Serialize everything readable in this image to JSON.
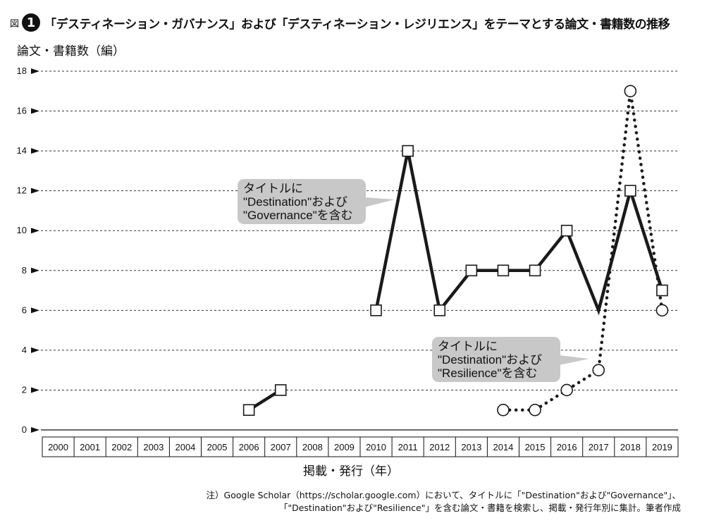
{
  "figure": {
    "label": "図",
    "number": "1",
    "title": "「デスティネーション・ガバナンス」および「デスティネーション・レジリエンス」をテーマとする論文・書籍数の推移"
  },
  "note": {
    "line1": "注）Google Scholar（https://scholar.google.com）において、タイトルに「\"Destination\"および\"Governance\"」、",
    "line2": "「\"Destination\"および\"Resilience\"」を含む論文・書籍を検索し、掲載・発行年別に集計。筆者作成"
  },
  "chart_data": {
    "type": "line",
    "title": "「デスティネーション・ガバナンス」および「デスティネーション・レジリエンス」をテーマとする論文・書籍数の推移",
    "xlabel": "掲載・発行（年）",
    "ylabel": "論文・書籍数（編）",
    "ylim": [
      0,
      18
    ],
    "yticks": [
      0,
      2,
      4,
      6,
      8,
      10,
      12,
      14,
      16,
      18
    ],
    "grid": true,
    "categories": [
      "2000",
      "2001",
      "2002",
      "2003",
      "2004",
      "2005",
      "2006",
      "2007",
      "2008",
      "2009",
      "2010",
      "2011",
      "2012",
      "2013",
      "2014",
      "2015",
      "2016",
      "2017",
      "2018",
      "2019"
    ],
    "series": [
      {
        "name": "タイトルに\"Destination\"および\"Governance\"を含む",
        "label_lines": [
          "タイトルに",
          "\"Destination\"および",
          "\"Governance\"を含む"
        ],
        "style": "solid",
        "marker": "square",
        "segments": [
          [
            [
              "2006",
              1
            ],
            [
              "2007",
              2
            ]
          ],
          [
            [
              "2010",
              6
            ],
            [
              "2011",
              14
            ],
            [
              "2012",
              6
            ],
            [
              "2013",
              8
            ],
            [
              "2014",
              8
            ],
            [
              "2015",
              8
            ],
            [
              "2016",
              10
            ],
            [
              "2017",
              6
            ],
            [
              "2018",
              12
            ],
            [
              "2019",
              7
            ]
          ]
        ],
        "markers_at": [
          "2006",
          "2007",
          "2010",
          "2011",
          "2012",
          "2013",
          "2014",
          "2015",
          "2016",
          "2018",
          "2019"
        ]
      },
      {
        "name": "タイトルに\"Destination\"および\"Resilience\"を含む",
        "label_lines": [
          "タイトルに",
          "\"Destination\"および",
          "\"Resilience\"を含む"
        ],
        "style": "dotted",
        "marker": "circle",
        "segments": [
          [
            [
              "2014",
              1
            ],
            [
              "2015",
              1
            ],
            [
              "2016",
              2
            ],
            [
              "2017",
              3
            ],
            [
              "2018",
              17
            ],
            [
              "2019",
              6
            ]
          ]
        ],
        "markers_at": [
          "2014",
          "2015",
          "2016",
          "2017",
          "2018",
          "2019"
        ]
      }
    ],
    "colors": {
      "line": "#1a1a1a",
      "grid": "#333333",
      "callout": "#c8c8c8"
    }
  }
}
